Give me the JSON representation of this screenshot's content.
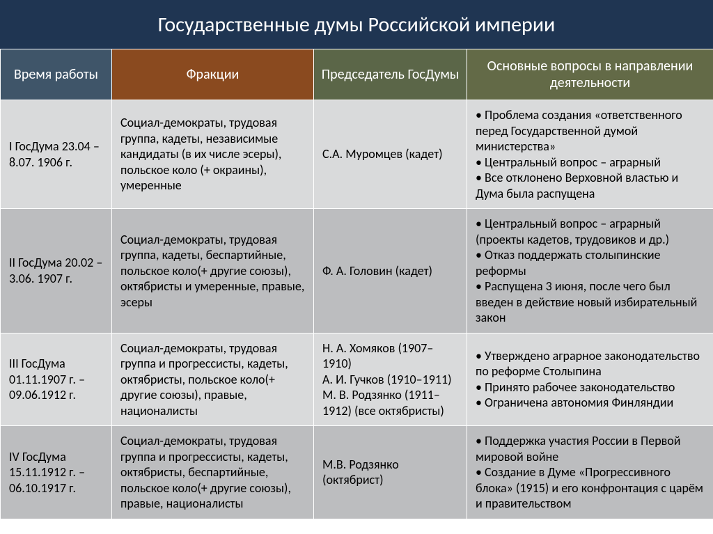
{
  "title": "Государственные думы Российской империи",
  "title_bg": "#1f3552",
  "headers": {
    "time": {
      "text": "Время работы",
      "bg": "#3f5569"
    },
    "frac": {
      "text": "Фракции",
      "bg": "#8a4a1f"
    },
    "chair": {
      "text": "Председатель ГосДумы",
      "bg": "#5b6648"
    },
    "issues": {
      "text": "Основные вопросы в направлении деятельности",
      "bg": "#636a47"
    }
  },
  "row_bg": {
    "odd": "#d9dadb",
    "even": "#bcbdbf"
  },
  "rows": [
    {
      "time": "I ГосДума 23.04 –8.07. 1906 г.",
      "frac": "Социал-демократы, трудовая группа, кадеты, независимые кандидаты (в их числе эсеры), польское коло (+ окраины), умеренные",
      "chair": "С.А. Муромцев (кадет)",
      "issues": [
        "Проблема создания «ответственного перед Государственной думой министерства»",
        "Центральный вопрос – аграрный",
        "Все отклонено Верховной властью и Дума была распущена"
      ]
    },
    {
      "time": "II ГосДума 20.02 –3.06. 1907 г.",
      "frac": "Социал-демократы, трудовая группа, кадеты, беспартийные, польское коло(+ другие союзы), октябристы и умеренные, правые, эсеры",
      "chair": "Ф. А. Головин (кадет)",
      "issues": [
        "Центральный вопрос – аграрный (проекты кадетов, трудовиков и др.)",
        "Отказ поддержать столыпинские реформы",
        "Распущена 3 июня, после чего был введен в действие новый избирательный закон"
      ]
    },
    {
      "time": "III ГосДума 01.11.1907 г. – 09.06.1912 г.",
      "frac": "Социал-демократы, трудовая группа и прогрессисты, кадеты, октябристы, польское коло(+ другие союзы), правые, националисты",
      "chair": "Н. А. Хомяков (1907–1910)\nА. И. Гучков (1910–1911)\nМ. В. Родзянко (1911–1912) (все октябристы)",
      "issues": [
        "Утверждено аграрное законодательство по реформе Столыпина",
        "Принято рабочее законодательство",
        "Ограничена автономия Финляндии"
      ]
    },
    {
      "time": "IV ГосДума 15.11.1912 г. – 06.10.1917 г.",
      "frac": "Социал-демократы, трудовая группа и прогрессисты, кадеты, октябристы, беспартийные, польское коло(+ другие союзы), правые, националисты",
      "chair": "М.В. Родзянко (октябрист)",
      "issues": [
        "Поддержка участия России в Первой мировой войне",
        "Создание в Думе «Прогрессивного блока» (1915) и его конфронтация с царём и правительством"
      ]
    }
  ]
}
